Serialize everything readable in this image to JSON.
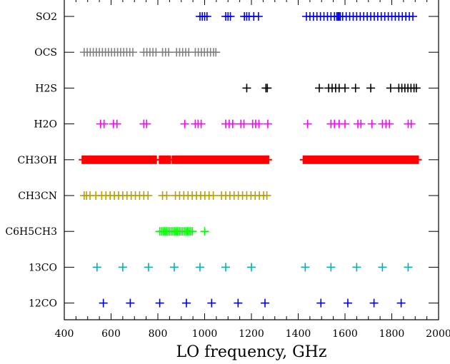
{
  "chart_data": {
    "type": "scatter",
    "xlabel": "LO frequency, GHz",
    "xlim": [
      400,
      2000
    ],
    "xticks": [
      400,
      600,
      800,
      1000,
      1200,
      1400,
      1600,
      1800,
      2000
    ],
    "xtick_labels": [
      "400",
      "600",
      "800",
      "1000",
      "1200",
      "1400",
      "1600",
      "1800",
      "2000"
    ],
    "grid": false,
    "categories": [
      "SO2",
      "OCS",
      "H2S",
      "H2O",
      "CH3OH",
      "CH3CN",
      "C6H5CH3",
      "13CO",
      "12CO"
    ],
    "series": [
      {
        "name": "SO2",
        "color": "#0000ff",
        "x": [
          980,
          990,
          1000,
          1010,
          1090,
          1100,
          1110,
          1170,
          1180,
          1190,
          1210,
          1230,
          1435,
          1450,
          1465,
          1480,
          1495,
          1510,
          1525,
          1540,
          1555,
          1565,
          1570,
          1575,
          1580,
          1590,
          1605,
          1620,
          1635,
          1650,
          1665,
          1680,
          1695,
          1710,
          1725,
          1740,
          1755,
          1770,
          1785,
          1800,
          1815,
          1830,
          1845,
          1860,
          1875,
          1890
        ]
      },
      {
        "name": "OCS",
        "color": "#808080",
        "x": [
          485,
          498,
          511,
          524,
          537,
          550,
          563,
          576,
          589,
          602,
          615,
          628,
          641,
          654,
          667,
          680,
          693,
          740,
          753,
          766,
          779,
          792,
          820,
          833,
          846,
          880,
          893,
          906,
          919,
          932,
          960,
          973,
          986,
          999,
          1012,
          1025,
          1038,
          1048
        ]
      },
      {
        "name": "H2S",
        "color": "#000000",
        "x": [
          1180,
          1262,
          1268,
          1490,
          1530,
          1545,
          1560,
          1575,
          1600,
          1645,
          1710,
          1795,
          1830,
          1843,
          1856,
          1869,
          1882,
          1895,
          1905
        ]
      },
      {
        "name": "H2O",
        "color": "#ff00ff",
        "x": [
          555,
          570,
          610,
          625,
          740,
          752,
          915,
          960,
          972,
          985,
          1090,
          1105,
          1120,
          1155,
          1168,
          1205,
          1218,
          1232,
          1270,
          1440,
          1540,
          1555,
          1575,
          1600,
          1655,
          1668,
          1715,
          1760,
          1775,
          1790,
          1870,
          1883
        ]
      },
      {
        "name": "CH3OH",
        "color": "#ff0000",
        "x_ranges": [
          [
            480,
            790
          ],
          [
            810,
            850
          ],
          [
            865,
            1270
          ],
          [
            1425,
            1910
          ]
        ]
      },
      {
        "name": "CH3CN",
        "color": "#b8a000",
        "x": [
          485,
          495,
          510,
          535,
          560,
          578,
          596,
          614,
          632,
          650,
          668,
          686,
          704,
          722,
          740,
          758,
          820,
          838,
          875,
          893,
          911,
          929,
          947,
          965,
          983,
          1001,
          1019,
          1037,
          1072,
          1090,
          1108,
          1126,
          1144,
          1162,
          1180,
          1198,
          1216,
          1234,
          1252,
          1266
        ]
      },
      {
        "name": "C6H5CH3",
        "color": "#00ff00",
        "x": [
          808,
          815,
          822,
          829,
          836,
          843,
          850,
          857,
          864,
          871,
          878,
          885,
          892,
          899,
          906,
          913,
          920,
          927,
          934,
          941,
          948,
          1000
        ]
      },
      {
        "name": "13CO",
        "color": "#00b0b0",
        "x": [
          540,
          650,
          760,
          870,
          980,
          1090,
          1200,
          1430,
          1540,
          1650,
          1760,
          1870
        ]
      },
      {
        "name": "12CO",
        "color": "#0000e0",
        "x": [
          567,
          682,
          808,
          922,
          1030,
          1143,
          1258,
          1497,
          1612,
          1724,
          1840
        ]
      }
    ]
  }
}
